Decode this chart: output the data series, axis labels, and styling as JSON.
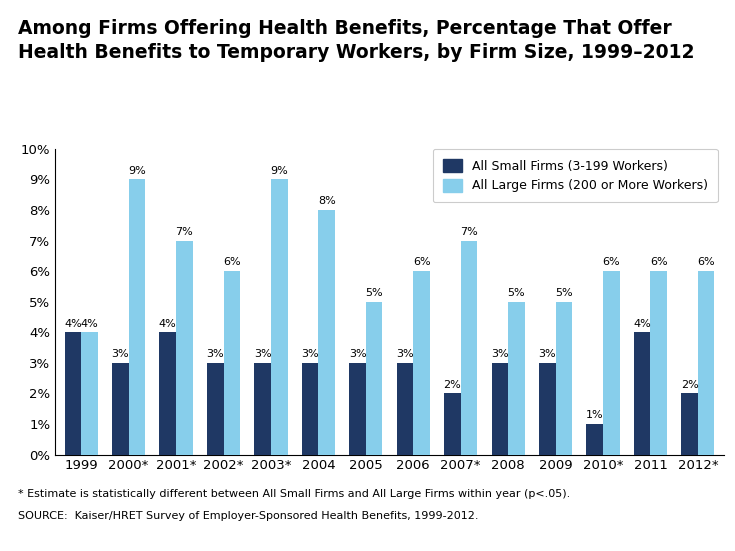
{
  "years": [
    "1999",
    "2000*",
    "2001*",
    "2002*",
    "2003*",
    "2004",
    "2005",
    "2006",
    "2007*",
    "2008",
    "2009",
    "2010*",
    "2011",
    "2012*"
  ],
  "small_firms": [
    4,
    3,
    4,
    3,
    3,
    3,
    3,
    3,
    2,
    3,
    3,
    1,
    4,
    2
  ],
  "large_firms": [
    4,
    9,
    7,
    6,
    9,
    8,
    5,
    6,
    7,
    5,
    5,
    6,
    6,
    6
  ],
  "small_color": "#1f3864",
  "large_color": "#87ceeb",
  "title_line1": "Among Firms Offering Health Benefits, Percentage That Offer",
  "title_line2": "Health Benefits to Temporary Workers, by Firm Size, 1999–2012",
  "legend_small": "All Small Firms (3-199 Workers)",
  "legend_large": "All Large Firms (200 or More Workers)",
  "ylim": [
    0,
    10
  ],
  "yticks": [
    0,
    1,
    2,
    3,
    4,
    5,
    6,
    7,
    8,
    9,
    10
  ],
  "ytick_labels": [
    "0%",
    "1%",
    "2%",
    "3%",
    "4%",
    "5%",
    "6%",
    "7%",
    "8%",
    "9%",
    "10%"
  ],
  "footnote1": "* Estimate is statistically different between All Small Firms and All Large Firms within year (p<.05).",
  "footnote2": "SOURCE:  Kaiser/HRET Survey of Employer-Sponsored Health Benefits, 1999-2012.",
  "background_color": "#ffffff",
  "bar_width": 0.35,
  "title_fontsize": 13.5,
  "axis_fontsize": 9.5,
  "label_fontsize": 8,
  "legend_fontsize": 9,
  "footnote_fontsize": 8
}
